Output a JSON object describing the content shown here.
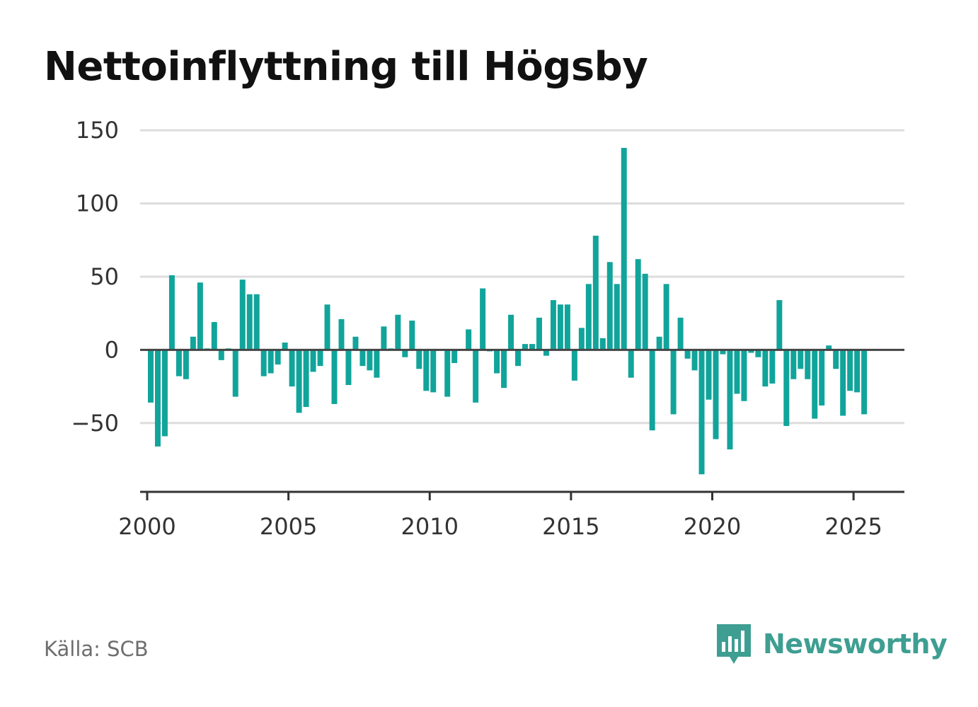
{
  "title": "Nettoinflyttning till Högsby",
  "source": "Källa: SCB",
  "brand": {
    "name": "Newsworthy",
    "icon": "bar-chart-speech-bubble-icon",
    "color": "#3e9e92"
  },
  "colors": {
    "bar": "#11a49b",
    "grid": "#dddddd",
    "zero_line": "#444444",
    "axis": "#333333"
  },
  "chart_data": {
    "type": "bar",
    "title": "Nettoinflyttning till Högsby",
    "xlabel": "",
    "ylabel": "",
    "grid": true,
    "ylim": [
      -97,
      152
    ],
    "xlim": [
      1999.75,
      2026.8
    ],
    "yticks": [
      150,
      100,
      50,
      0,
      -50
    ],
    "ytick_labels": [
      "150",
      "100",
      "50",
      "0",
      "−50"
    ],
    "xticks": [
      2000,
      2005,
      2010,
      2015,
      2020,
      2025
    ],
    "xtick_labels": [
      "2000",
      "2005",
      "2010",
      "2015",
      "2020",
      "2025"
    ],
    "bar_period": "quarter",
    "x": [
      2000.0,
      2000.25,
      2000.5,
      2000.75,
      2001.0,
      2001.25,
      2001.5,
      2001.75,
      2002.0,
      2002.25,
      2002.5,
      2002.75,
      2003.0,
      2003.25,
      2003.5,
      2003.75,
      2004.0,
      2004.25,
      2004.5,
      2004.75,
      2005.0,
      2005.25,
      2005.5,
      2005.75,
      2006.0,
      2006.25,
      2006.5,
      2006.75,
      2007.0,
      2007.25,
      2007.5,
      2007.75,
      2008.0,
      2008.25,
      2008.5,
      2008.75,
      2009.0,
      2009.25,
      2009.5,
      2009.75,
      2010.0,
      2010.25,
      2010.5,
      2010.75,
      2011.0,
      2011.25,
      2011.5,
      2011.75,
      2012.0,
      2012.25,
      2012.5,
      2012.75,
      2013.0,
      2013.25,
      2013.5,
      2013.75,
      2014.0,
      2014.25,
      2014.5,
      2014.75,
      2015.0,
      2015.25,
      2015.5,
      2015.75,
      2016.0,
      2016.25,
      2016.5,
      2016.75,
      2017.0,
      2017.25,
      2017.5,
      2017.75,
      2018.0,
      2018.25,
      2018.5,
      2018.75,
      2019.0,
      2019.25,
      2019.5,
      2019.75,
      2020.0,
      2020.25,
      2020.5,
      2020.75,
      2021.0,
      2021.25,
      2021.5,
      2021.75,
      2022.0,
      2022.25,
      2022.5,
      2022.75,
      2023.0,
      2023.25,
      2023.5,
      2023.75,
      2024.0,
      2024.25,
      2024.5,
      2024.75,
      2025.0,
      2025.25
    ],
    "values": [
      -36,
      -66,
      -59,
      51,
      -18,
      -20,
      9,
      46,
      1,
      19,
      -7,
      1,
      -32,
      48,
      38,
      38,
      -18,
      -16,
      -10,
      5,
      -25,
      -43,
      -39,
      -15,
      -11,
      31,
      -37,
      21,
      -24,
      9,
      -11,
      -14,
      -19,
      16,
      1,
      24,
      -5,
      20,
      -13,
      -28,
      -29,
      0,
      -32,
      -9,
      0,
      14,
      -36,
      42,
      -1,
      -16,
      -26,
      24,
      -11,
      4,
      4,
      22,
      -4,
      34,
      31,
      31,
      -21,
      15,
      45,
      78,
      8,
      60,
      45,
      138,
      -19,
      62,
      52,
      -55,
      9,
      45,
      -44,
      22,
      -6,
      -14,
      -85,
      -34,
      -61,
      -3,
      -68,
      -30,
      -35,
      -2,
      -5,
      -25,
      -23,
      34,
      -52,
      -20,
      -13,
      -20,
      -47,
      -38,
      3,
      -13,
      -45,
      -28,
      -29,
      -44
    ]
  }
}
